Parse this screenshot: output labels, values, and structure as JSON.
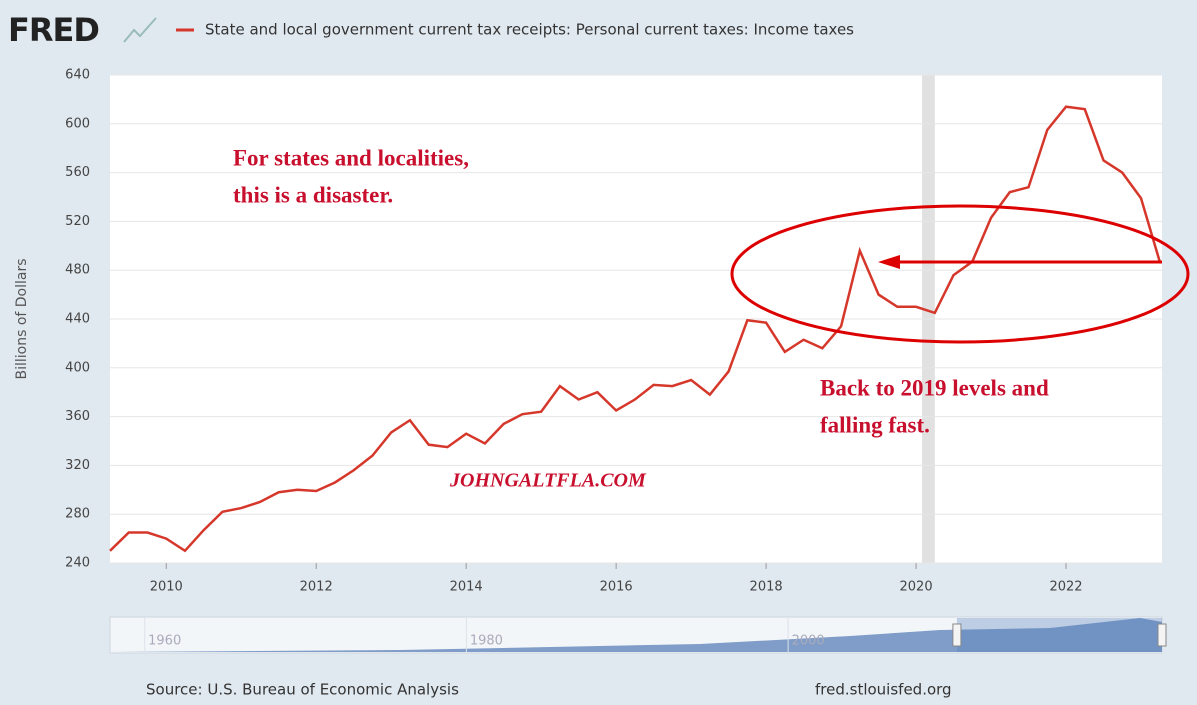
{
  "chart_data": {
    "type": "line",
    "logo": "FRED",
    "y_label": "Billions of Dollars",
    "x": [
      2009.25,
      2009.5,
      2009.75,
      2010,
      2010.25,
      2010.5,
      2010.75,
      2011,
      2011.25,
      2011.5,
      2011.75,
      2012,
      2012.25,
      2012.5,
      2012.75,
      2013,
      2013.25,
      2013.5,
      2013.75,
      2014,
      2014.25,
      2014.5,
      2014.75,
      2015,
      2015.25,
      2015.5,
      2015.75,
      2016,
      2016.25,
      2016.5,
      2016.75,
      2017,
      2017.25,
      2017.5,
      2017.75,
      2018,
      2018.25,
      2018.5,
      2018.75,
      2019,
      2019.25,
      2019.5,
      2019.75,
      2020,
      2020.25,
      2020.5,
      2020.75,
      2021,
      2021.25,
      2021.5,
      2021.75,
      2022,
      2022.25,
      2022.5,
      2022.75,
      2023,
      2023.25
    ],
    "series": [
      {
        "name": "State and local government current tax receipts: Personal current taxes: Income taxes",
        "color": "#d6372b",
        "values": [
          250,
          265,
          265,
          260,
          250,
          267,
          282,
          285,
          290,
          298,
          300,
          299,
          306,
          316,
          328,
          347,
          357,
          337,
          335,
          346,
          338,
          354,
          362,
          364,
          385,
          374,
          380,
          365,
          374,
          386,
          385,
          390,
          378,
          397,
          439,
          437,
          413,
          423,
          416,
          434,
          496,
          460,
          450,
          450,
          445,
          476,
          487,
          523,
          544,
          548,
          595,
          614,
          612,
          570,
          560,
          539,
          487
        ]
      }
    ],
    "xlim": [
      2009.25,
      2023.28
    ],
    "xticks": [
      2010,
      2012,
      2014,
      2016,
      2018,
      2020,
      2022
    ],
    "ylim": [
      240,
      640
    ],
    "yticks": [
      240,
      280,
      320,
      360,
      400,
      440,
      480,
      520,
      560,
      600,
      640
    ],
    "grid": true,
    "recession_shading": [
      [
        2020.08,
        2020.25
      ]
    ],
    "annotations": {
      "top": [
        "For states and localities,",
        "this is a disaster."
      ],
      "right": [
        "Back to 2019 levels and",
        "falling fast."
      ],
      "watermark": "JOHNGALTFLA.COM"
    },
    "navigator": {
      "xlim": [
        1956.6,
        2022
      ],
      "xticks": [
        1960,
        1980,
        2000
      ]
    },
    "source": "Source: U.S. Bureau of Economic Analysis",
    "site": "fred.stlouisfed.org"
  }
}
